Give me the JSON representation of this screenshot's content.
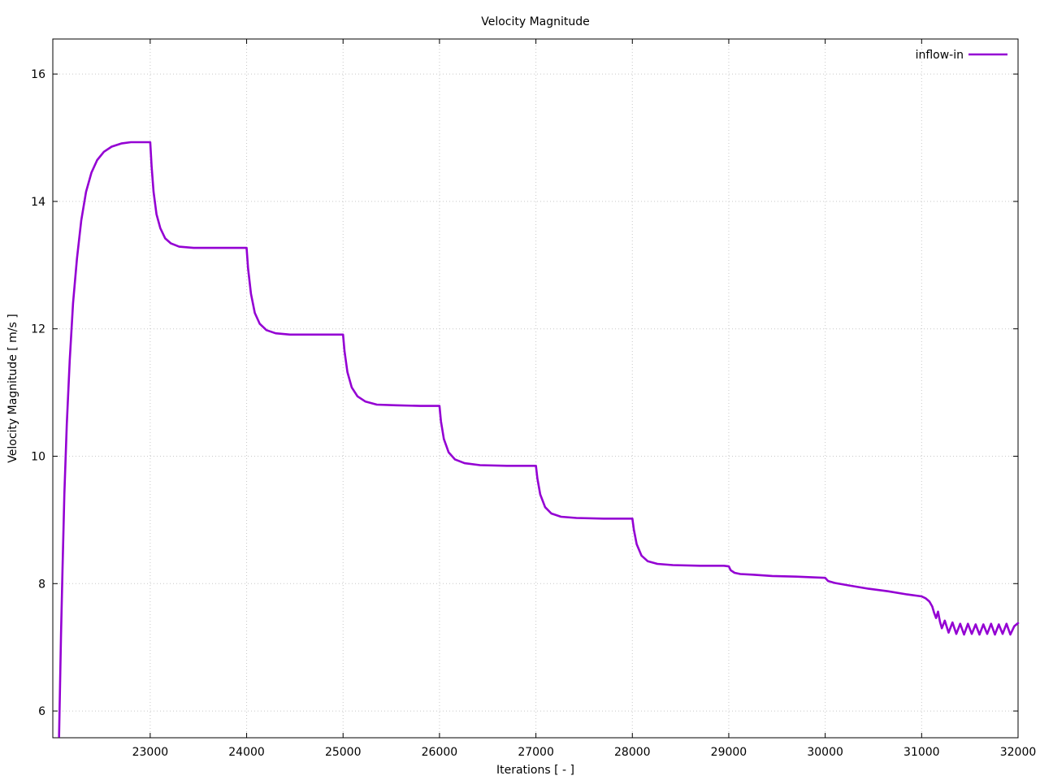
{
  "chart_data": {
    "type": "line",
    "title": "Velocity Magnitude",
    "xlabel": "Iterations [ - ]",
    "ylabel": "Velocity Magnitude [ m/s ]",
    "xlim": [
      21990,
      32000
    ],
    "ylim": [
      5.58,
      16.55
    ],
    "x_ticks": [
      23000,
      24000,
      25000,
      26000,
      27000,
      28000,
      29000,
      30000,
      31000,
      32000
    ],
    "y_ticks": [
      6,
      8,
      10,
      12,
      14,
      16
    ],
    "grid": true,
    "grid_color": "#c8c8c8",
    "line_color": "#9400d3",
    "legend": {
      "position": "top-right",
      "entries": [
        {
          "label": "inflow-in",
          "color": "#9400d3"
        }
      ]
    },
    "series": [
      {
        "name": "inflow-in",
        "color": "#9400d3",
        "points": [
          [
            22055,
            5.6
          ],
          [
            22065,
            6.4
          ],
          [
            22075,
            7.2
          ],
          [
            22090,
            8.2
          ],
          [
            22110,
            9.4
          ],
          [
            22135,
            10.5
          ],
          [
            22165,
            11.5
          ],
          [
            22200,
            12.4
          ],
          [
            22240,
            13.1
          ],
          [
            22285,
            13.7
          ],
          [
            22335,
            14.15
          ],
          [
            22390,
            14.45
          ],
          [
            22450,
            14.65
          ],
          [
            22520,
            14.78
          ],
          [
            22600,
            14.86
          ],
          [
            22700,
            14.91
          ],
          [
            22800,
            14.93
          ],
          [
            22950,
            14.93
          ],
          [
            23000,
            14.93
          ],
          [
            23015,
            14.55
          ],
          [
            23035,
            14.15
          ],
          [
            23065,
            13.8
          ],
          [
            23105,
            13.58
          ],
          [
            23155,
            13.42
          ],
          [
            23215,
            13.34
          ],
          [
            23300,
            13.29
          ],
          [
            23450,
            13.27
          ],
          [
            23700,
            13.27
          ],
          [
            24000,
            13.27
          ],
          [
            24015,
            12.95
          ],
          [
            24045,
            12.55
          ],
          [
            24085,
            12.25
          ],
          [
            24135,
            12.08
          ],
          [
            24205,
            11.98
          ],
          [
            24300,
            11.93
          ],
          [
            24450,
            11.91
          ],
          [
            24700,
            11.91
          ],
          [
            25000,
            11.91
          ],
          [
            25015,
            11.65
          ],
          [
            25045,
            11.32
          ],
          [
            25090,
            11.08
          ],
          [
            25150,
            10.94
          ],
          [
            25230,
            10.86
          ],
          [
            25350,
            10.81
          ],
          [
            25550,
            10.8
          ],
          [
            25800,
            10.79
          ],
          [
            26000,
            10.79
          ],
          [
            26015,
            10.55
          ],
          [
            26045,
            10.27
          ],
          [
            26095,
            10.06
          ],
          [
            26160,
            9.95
          ],
          [
            26260,
            9.89
          ],
          [
            26420,
            9.86
          ],
          [
            26700,
            9.85
          ],
          [
            27000,
            9.85
          ],
          [
            27015,
            9.65
          ],
          [
            27045,
            9.4
          ],
          [
            27095,
            9.2
          ],
          [
            27160,
            9.1
          ],
          [
            27260,
            9.05
          ],
          [
            27420,
            9.03
          ],
          [
            27700,
            9.02
          ],
          [
            28000,
            9.02
          ],
          [
            28015,
            8.85
          ],
          [
            28045,
            8.62
          ],
          [
            28095,
            8.44
          ],
          [
            28160,
            8.35
          ],
          [
            28260,
            8.31
          ],
          [
            28420,
            8.29
          ],
          [
            28700,
            8.28
          ],
          [
            28950,
            8.28
          ],
          [
            29000,
            8.27
          ],
          [
            29020,
            8.21
          ],
          [
            29060,
            8.17
          ],
          [
            29120,
            8.15
          ],
          [
            29250,
            8.14
          ],
          [
            29450,
            8.12
          ],
          [
            29700,
            8.11
          ],
          [
            30000,
            8.09
          ],
          [
            30030,
            8.04
          ],
          [
            30100,
            8.01
          ],
          [
            30250,
            7.97
          ],
          [
            30450,
            7.92
          ],
          [
            30650,
            7.88
          ],
          [
            30850,
            7.83
          ],
          [
            31000,
            7.8
          ],
          [
            31040,
            7.77
          ],
          [
            31080,
            7.72
          ],
          [
            31110,
            7.64
          ],
          [
            31130,
            7.54
          ],
          [
            31150,
            7.46
          ],
          [
            31170,
            7.56
          ],
          [
            31190,
            7.4
          ],
          [
            31210,
            7.3
          ],
          [
            31240,
            7.42
          ],
          [
            31280,
            7.23
          ],
          [
            31320,
            7.39
          ],
          [
            31360,
            7.21
          ],
          [
            31400,
            7.37
          ],
          [
            31440,
            7.2
          ],
          [
            31480,
            7.37
          ],
          [
            31520,
            7.21
          ],
          [
            31560,
            7.36
          ],
          [
            31600,
            7.2
          ],
          [
            31640,
            7.36
          ],
          [
            31680,
            7.21
          ],
          [
            31720,
            7.37
          ],
          [
            31760,
            7.2
          ],
          [
            31800,
            7.36
          ],
          [
            31840,
            7.21
          ],
          [
            31880,
            7.37
          ],
          [
            31920,
            7.2
          ],
          [
            31960,
            7.33
          ],
          [
            32000,
            7.38
          ]
        ]
      }
    ]
  }
}
